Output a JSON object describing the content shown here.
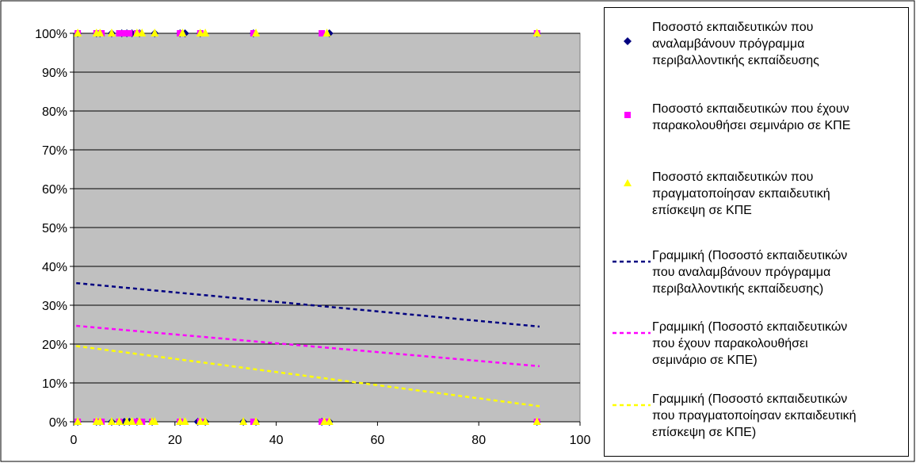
{
  "chart_data": {
    "type": "scatter",
    "xlim": [
      0,
      100
    ],
    "ylim": [
      0,
      1
    ],
    "x_ticks": [
      "0",
      "20",
      "40",
      "60",
      "80",
      "100"
    ],
    "y_ticks": [
      "0%",
      "10%",
      "20%",
      "30%",
      "40%",
      "50%",
      "60%",
      "70%",
      "80%",
      "90%",
      "100%"
    ],
    "plot_background": "#c0c0c0",
    "grid": true,
    "legend_position": "right",
    "series": [
      {
        "name": "Ποσοστό εκπαιδευτικών που αναλαμβάνουν πρόγραμμα περιβαλλοντικής εκπαίδευσης",
        "marker": "diamond",
        "color": "#000080",
        "points": [
          [
            0.8,
            0
          ],
          [
            4.5,
            0
          ],
          [
            5.2,
            0
          ],
          [
            7.5,
            0
          ],
          [
            9,
            0
          ],
          [
            10,
            0
          ],
          [
            11,
            0
          ],
          [
            12.5,
            0
          ],
          [
            15.5,
            0
          ],
          [
            21,
            0
          ],
          [
            24.5,
            0
          ],
          [
            26,
            0
          ],
          [
            33.5,
            0
          ],
          [
            36,
            0
          ],
          [
            49,
            0
          ],
          [
            50.5,
            0
          ],
          [
            91.5,
            0
          ],
          [
            0.8,
            1
          ],
          [
            4.5,
            1
          ],
          [
            5.2,
            1
          ],
          [
            7.5,
            1
          ],
          [
            9.5,
            1
          ],
          [
            10.5,
            1
          ],
          [
            11.5,
            1
          ],
          [
            13,
            1
          ],
          [
            16,
            1
          ],
          [
            21,
            1
          ],
          [
            22,
            1
          ],
          [
            25,
            1
          ],
          [
            35.5,
            1
          ],
          [
            50.5,
            1
          ],
          [
            91.5,
            1
          ]
        ]
      },
      {
        "name": "Ποσοστό εκπαιδευτικών που έχουν παρακολουθήσει σεμινάριο σε ΚΠΕ",
        "marker": "square",
        "color": "#ff00ff",
        "points": [
          [
            0.8,
            0
          ],
          [
            4.5,
            0
          ],
          [
            5.5,
            0
          ],
          [
            9,
            0
          ],
          [
            12.5,
            0
          ],
          [
            13.5,
            0
          ],
          [
            15.5,
            0
          ],
          [
            21,
            0
          ],
          [
            25,
            0
          ],
          [
            35.5,
            0
          ],
          [
            49,
            0
          ],
          [
            50,
            0
          ],
          [
            91.5,
            0
          ],
          [
            0.8,
            1
          ],
          [
            4.5,
            1
          ],
          [
            5.5,
            1
          ],
          [
            9,
            1
          ],
          [
            10,
            1
          ],
          [
            11,
            1
          ],
          [
            12.5,
            1
          ],
          [
            21,
            1
          ],
          [
            25,
            1
          ],
          [
            35.5,
            1
          ],
          [
            49,
            1
          ],
          [
            91.5,
            1
          ]
        ]
      },
      {
        "name": "Ποσοστό εκπαιδευτικών που πραγματοποίησαν εκπαιδευτική επίσκεψη σε ΚΠΕ",
        "marker": "triangle",
        "color": "#ffff00",
        "points": [
          [
            0.8,
            0
          ],
          [
            4.5,
            0
          ],
          [
            5.2,
            0
          ],
          [
            7.5,
            0
          ],
          [
            9,
            0
          ],
          [
            10.5,
            0
          ],
          [
            11.5,
            0
          ],
          [
            13,
            0
          ],
          [
            15.5,
            0
          ],
          [
            16,
            0
          ],
          [
            21,
            0
          ],
          [
            22,
            0
          ],
          [
            25,
            0
          ],
          [
            26,
            0
          ],
          [
            33.5,
            0
          ],
          [
            36,
            0
          ],
          [
            49.5,
            0
          ],
          [
            50.5,
            0
          ],
          [
            91.5,
            0
          ],
          [
            0.8,
            1
          ],
          [
            4.5,
            1
          ],
          [
            5.2,
            1
          ],
          [
            7.5,
            1
          ],
          [
            12.5,
            1
          ],
          [
            13.5,
            1
          ],
          [
            16,
            1
          ],
          [
            21.5,
            1
          ],
          [
            25,
            1
          ],
          [
            26,
            1
          ],
          [
            36,
            1
          ],
          [
            50,
            1
          ],
          [
            91.5,
            1
          ]
        ]
      }
    ],
    "trendlines": [
      {
        "name": "Γραμμική (Ποσοστό εκπαιδευτικών που αναλαμβάνουν πρόγραμμα περιβαλλοντικής εκπαίδευσης)",
        "color": "#000080",
        "x": [
          0.5,
          92
        ],
        "y": [
          0.357,
          0.245
        ]
      },
      {
        "name": "Γραμμική (Ποσοστό εκπαιδευτικών που έχουν παρακολουθήσει σεμινάριο σε ΚΠΕ)",
        "color": "#ff00ff",
        "x": [
          0.5,
          92
        ],
        "y": [
          0.247,
          0.143
        ]
      },
      {
        "name": "Γραμμική (Ποσοστό εκπαιδευτικών που πραγματοποίησαν εκπαιδευτική επίσκεψη σε ΚΠΕ)",
        "color": "#ffff00",
        "x": [
          0.5,
          92
        ],
        "y": [
          0.195,
          0.04
        ]
      }
    ]
  },
  "legend": {
    "items": [
      {
        "text": "Ποσοστό εκπαιδευτικών που\nαναλαμβάνουν πρόγραμμα\nπεριβαλλοντικής εκπαίδευσης",
        "kind": "diamond",
        "color": "#000080"
      },
      {
        "text": "Ποσοστό εκπαιδευτικών που έχουν\nπαρακολουθήσει σεμινάριο σε ΚΠΕ",
        "kind": "square",
        "color": "#ff00ff"
      },
      {
        "text": "Ποσοστό εκπαιδευτικών που\nπραγματοποίησαν εκπαιδευτική\nεπίσκεψη σε ΚΠΕ",
        "kind": "triangle",
        "color": "#ffff00"
      },
      {
        "text": "Γραμμική (Ποσοστό εκπαιδευτικών\nπου αναλαμβάνουν πρόγραμμα\nπεριβαλλοντικής εκπαίδευσης)",
        "kind": "line",
        "color": "#000080"
      },
      {
        "text": "Γραμμική (Ποσοστό εκπαιδευτικών\nπου έχουν παρακολουθήσει\nσεμινάριο σε ΚΠΕ)",
        "kind": "line",
        "color": "#ff00ff"
      },
      {
        "text": "Γραμμική (Ποσοστό εκπαιδευτικών\nπου πραγματοποίησαν εκπαιδευτική\nεπίσκεψη σε ΚΠΕ)",
        "kind": "line",
        "color": "#ffff00"
      }
    ]
  }
}
